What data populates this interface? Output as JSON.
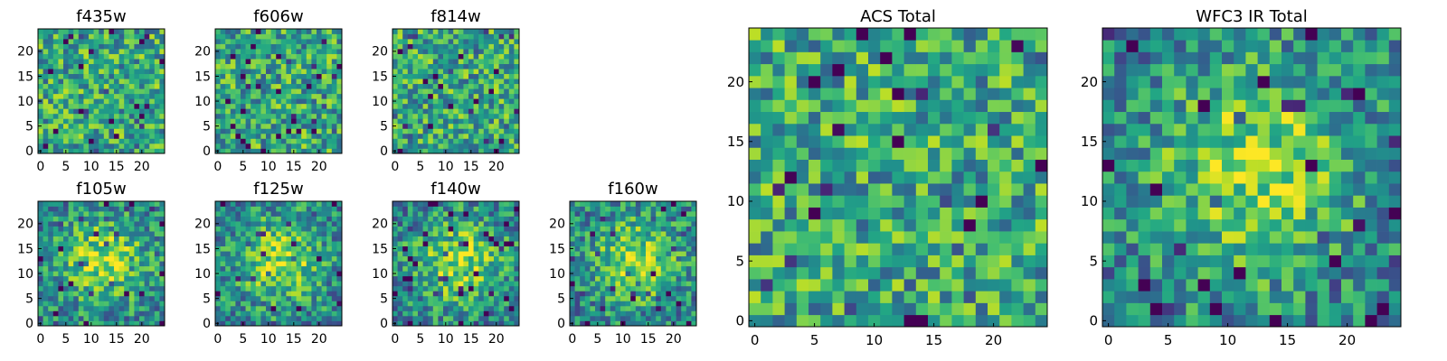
{
  "figure_title": "",
  "chart_data": [
    {
      "id": "f435w",
      "type": "heatmap",
      "title": "f435w",
      "grid_size": [
        25,
        25
      ],
      "xlim": [
        -0.5,
        24.5
      ],
      "ylim": [
        -0.5,
        24.5
      ],
      "xticks": [
        0,
        5,
        10,
        15,
        20
      ],
      "yticks": [
        0,
        5,
        10,
        15,
        20
      ],
      "colormap": "viridis",
      "value_range": [
        0,
        1
      ],
      "pattern": "noise",
      "seed": 11
    },
    {
      "id": "f606w",
      "type": "heatmap",
      "title": "f606w",
      "grid_size": [
        25,
        25
      ],
      "xlim": [
        -0.5,
        24.5
      ],
      "ylim": [
        -0.5,
        24.5
      ],
      "xticks": [
        0,
        5,
        10,
        15,
        20
      ],
      "yticks": [
        0,
        5,
        10,
        15,
        20
      ],
      "colormap": "viridis",
      "value_range": [
        0,
        1
      ],
      "pattern": "noise",
      "seed": 23
    },
    {
      "id": "f814w",
      "type": "heatmap",
      "title": "f814w",
      "grid_size": [
        25,
        25
      ],
      "xlim": [
        -0.5,
        24.5
      ],
      "ylim": [
        -0.5,
        24.5
      ],
      "xticks": [
        0,
        5,
        10,
        15,
        20
      ],
      "yticks": [
        0,
        5,
        10,
        15,
        20
      ],
      "colormap": "viridis",
      "value_range": [
        0,
        1
      ],
      "pattern": "noise",
      "seed": 37
    },
    {
      "id": "f105w",
      "type": "heatmap",
      "title": "f105w",
      "grid_size": [
        25,
        25
      ],
      "xlim": [
        -0.5,
        24.5
      ],
      "ylim": [
        -0.5,
        24.5
      ],
      "xticks": [
        0,
        5,
        10,
        15,
        20
      ],
      "yticks": [
        0,
        5,
        10,
        15,
        20
      ],
      "colormap": "viridis",
      "value_range": [
        0,
        1
      ],
      "pattern": "source",
      "seed": 41
    },
    {
      "id": "f125w",
      "type": "heatmap",
      "title": "f125w",
      "grid_size": [
        25,
        25
      ],
      "xlim": [
        -0.5,
        24.5
      ],
      "ylim": [
        -0.5,
        24.5
      ],
      "xticks": [
        0,
        5,
        10,
        15,
        20
      ],
      "yticks": [
        0,
        5,
        10,
        15,
        20
      ],
      "colormap": "viridis",
      "value_range": [
        0,
        1
      ],
      "pattern": "source",
      "seed": 53
    },
    {
      "id": "f140w",
      "type": "heatmap",
      "title": "f140w",
      "grid_size": [
        25,
        25
      ],
      "xlim": [
        -0.5,
        24.5
      ],
      "ylim": [
        -0.5,
        24.5
      ],
      "xticks": [
        0,
        5,
        10,
        15,
        20
      ],
      "yticks": [
        0,
        5,
        10,
        15,
        20
      ],
      "colormap": "viridis",
      "value_range": [
        0,
        1
      ],
      "pattern": "source",
      "seed": 67
    },
    {
      "id": "f160w",
      "type": "heatmap",
      "title": "f160w",
      "grid_size": [
        25,
        25
      ],
      "xlim": [
        -0.5,
        24.5
      ],
      "ylim": [
        -0.5,
        24.5
      ],
      "xticks": [
        0,
        5,
        10,
        15,
        20
      ],
      "yticks": [
        0,
        5,
        10,
        15,
        20
      ],
      "colormap": "viridis",
      "value_range": [
        0,
        1
      ],
      "pattern": "source",
      "seed": 79
    },
    {
      "id": "acs-total",
      "type": "heatmap",
      "title": "ACS Total",
      "grid_size": [
        25,
        25
      ],
      "xlim": [
        -0.5,
        24.5
      ],
      "ylim": [
        -0.5,
        24.5
      ],
      "xticks": [
        0,
        5,
        10,
        15,
        20
      ],
      "yticks": [
        0,
        5,
        10,
        15,
        20
      ],
      "colormap": "viridis",
      "value_range": [
        0,
        1
      ],
      "pattern": "noise",
      "seed": 97
    },
    {
      "id": "wfc3-ir-total",
      "type": "heatmap",
      "title": "WFC3 IR Total",
      "grid_size": [
        25,
        25
      ],
      "xlim": [
        -0.5,
        24.5
      ],
      "ylim": [
        -0.5,
        24.5
      ],
      "xticks": [
        0,
        5,
        10,
        15,
        20
      ],
      "yticks": [
        0,
        5,
        10,
        15,
        20
      ],
      "colormap": "viridis",
      "value_range": [
        0,
        1
      ],
      "pattern": "source",
      "seed": 131
    }
  ],
  "colors": {
    "background": "#ffffff",
    "axes": "#000000"
  }
}
